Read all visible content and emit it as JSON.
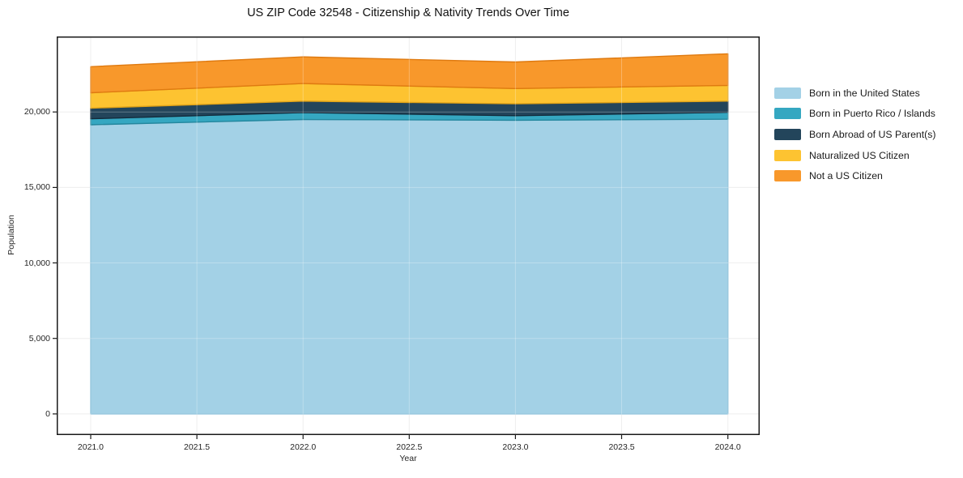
{
  "title": "US ZIP Code 32548 - Citizenship & Nativity Trends Over Time",
  "chart_data": {
    "type": "area",
    "stacked": true,
    "title": "US ZIP Code 32548 - Citizenship & Nativity Trends Over Time",
    "xlabel": "Year",
    "ylabel": "Population",
    "x": [
      2021,
      2022,
      2023,
      2024
    ],
    "series": [
      {
        "name": "Born in the United States",
        "color": "#a3d1e6",
        "edge_color": "#7db9d6",
        "values": [
          19150,
          19500,
          19450,
          19520
        ]
      },
      {
        "name": "Born in Puerto Rico / Islands",
        "color": "#35a7c1",
        "edge_color": "#24879e",
        "values": [
          400,
          460,
          300,
          460
        ]
      },
      {
        "name": "Born Abroad of US Parent(s)",
        "color": "#23455b",
        "edge_color": "#132c3d",
        "values": [
          700,
          760,
          790,
          740
        ]
      },
      {
        "name": "Naturalized US Citizen",
        "color": "#fdc331",
        "edge_color": "#e2a418",
        "values": [
          1020,
          1160,
          1010,
          1040
        ]
      },
      {
        "name": "Not a US Citizen",
        "color": "#f8982b",
        "edge_color": "#df7a10",
        "values": [
          1730,
          1770,
          1760,
          2090
        ]
      }
    ],
    "xlim": [
      2020.84,
      2024.15
    ],
    "ylim": [
      -1400,
      25000
    ],
    "xticks": [
      2021.0,
      2021.5,
      2022.0,
      2022.5,
      2023.0,
      2023.5,
      2024.0
    ],
    "xtick_labels": [
      "2021.0",
      "2021.5",
      "2022.0",
      "2022.5",
      "2023.0",
      "2023.5",
      "2024.0"
    ],
    "yticks": [
      0,
      5000,
      10000,
      15000,
      20000
    ],
    "ytick_labels": [
      "0",
      "5,000",
      "10,000",
      "15,000",
      "20,000"
    ],
    "grid": true,
    "grid_color": "#e9e9e9",
    "spine_color": "#1a1a1a",
    "legend_position": "right"
  }
}
